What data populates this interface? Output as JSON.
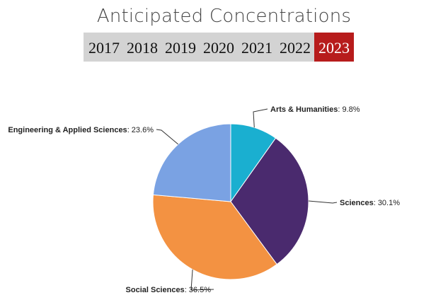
{
  "title": "Anticipated Concentrations",
  "year_tabs": [
    {
      "label": "2017",
      "active": false
    },
    {
      "label": "2018",
      "active": false
    },
    {
      "label": "2019",
      "active": false
    },
    {
      "label": "2020",
      "active": false
    },
    {
      "label": "2021",
      "active": false
    },
    {
      "label": "2022",
      "active": false
    },
    {
      "label": "2023",
      "active": true
    }
  ],
  "colors": {
    "active_tab": "#b71c1c",
    "tab_bar": "#d3d3d3"
  },
  "chart_data": {
    "type": "pie",
    "title": "",
    "slices": [
      {
        "name": "Arts & Humanities",
        "value": 9.8,
        "label_value": "9.8%",
        "color": "#1aafd0"
      },
      {
        "name": "Sciences",
        "value": 30.1,
        "label_value": "30.1%",
        "color": "#4a2a6e"
      },
      {
        "name": "Social Sciences",
        "value": 36.5,
        "label_value": "36.5%",
        "color": "#f39242"
      },
      {
        "name": "Engineering & Applied Sciences",
        "value": 23.6,
        "label_value": "23.6%",
        "color": "#7aa2e3"
      }
    ],
    "start_angle": "12 o'clock",
    "direction": "clockwise",
    "legend": "none"
  }
}
